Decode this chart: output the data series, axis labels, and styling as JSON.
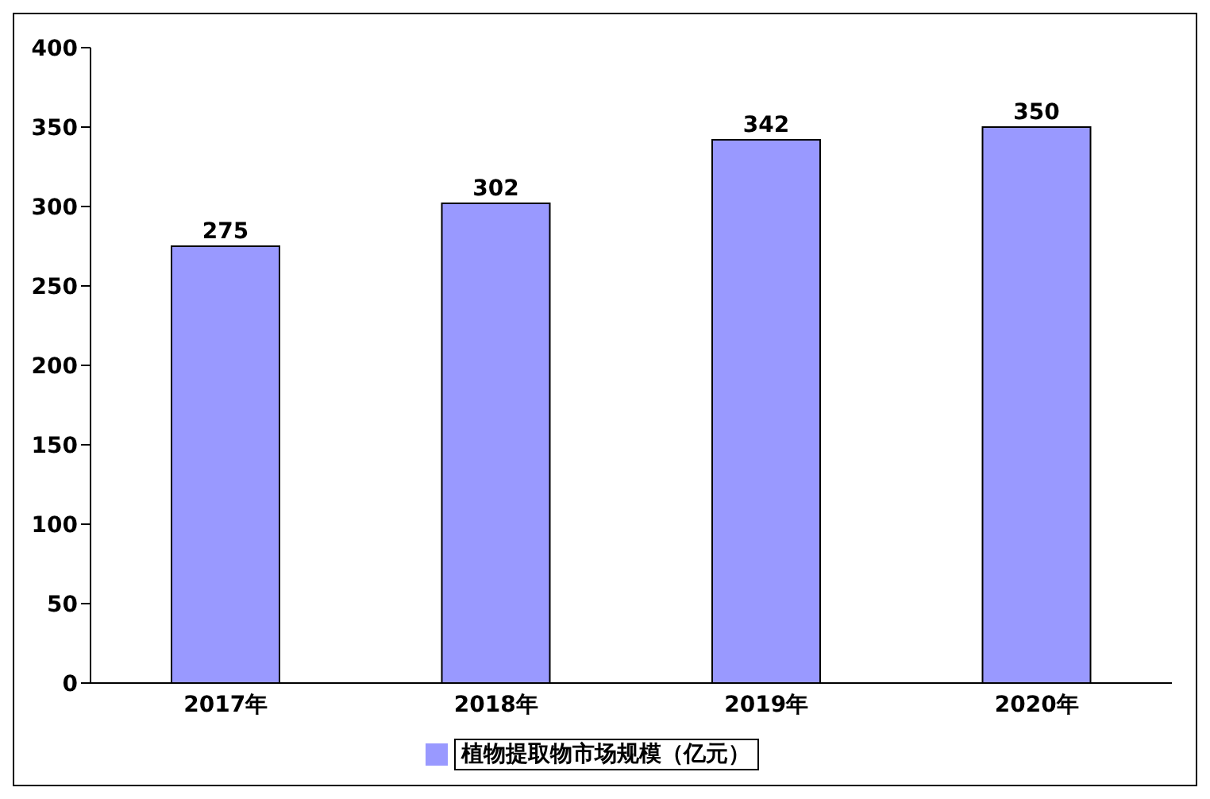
{
  "chart_data": {
    "type": "bar",
    "categories": [
      "2017年",
      "2018年",
      "2019年",
      "2020年"
    ],
    "series": [
      {
        "name": "植物提取物市场规模（亿元）",
        "color": "#9999ff",
        "values": [
          275,
          302,
          342,
          350
        ]
      }
    ],
    "ylim": [
      0,
      400
    ],
    "yticks": [
      0,
      50,
      100,
      150,
      200,
      250,
      300,
      350,
      400
    ],
    "data_labels": true,
    "legend": "bottom",
    "grid": false
  }
}
